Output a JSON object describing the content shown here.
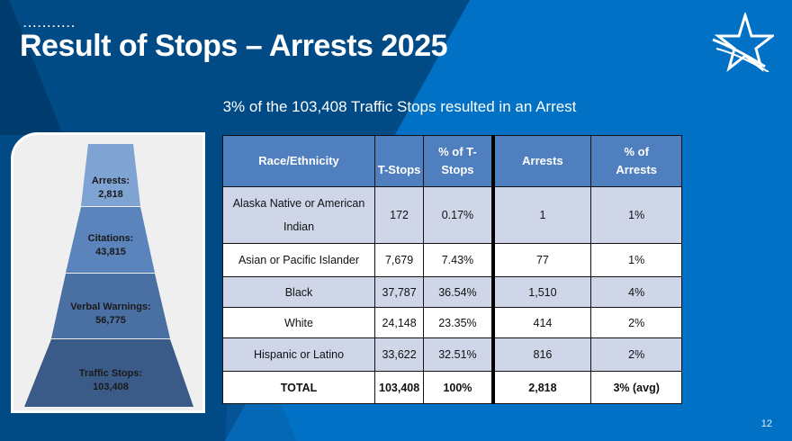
{
  "slide": {
    "title": "Result of Stops – Arrests 2025",
    "dots": "...........",
    "subtitle": "3% of the 103,408 Traffic Stops resulted in an Arrest",
    "page_number": "12"
  },
  "colors": {
    "navy": "#004a85",
    "blue": "#0071c5",
    "header": "#4f7fbf",
    "row_alt": "#cfd6e8"
  },
  "pyramid": [
    {
      "label": "Arrests:",
      "value": "2,818",
      "color": "#7fa3d2"
    },
    {
      "label": "Citations:",
      "value": "43,815",
      "color": "#5a84bb"
    },
    {
      "label": "Verbal Warnings:",
      "value": "56,775",
      "color": "#4a6fa3"
    },
    {
      "label": "Traffic Stops:",
      "value": "103,408",
      "color": "#3a5a88"
    }
  ],
  "table": {
    "headers": [
      "Race/Ethnicity",
      "T-Stops",
      "% of T-Stops",
      "Arrests",
      "% of Arrests"
    ],
    "rows": [
      [
        "Alaska Native or American Indian",
        "172",
        "0.17%",
        "1",
        "1%"
      ],
      [
        "Asian or Pacific Islander",
        "7,679",
        "7.43%",
        "77",
        "1%"
      ],
      [
        "Black",
        "37,787",
        "36.54%",
        "1,510",
        "4%"
      ],
      [
        "White",
        "24,148",
        "23.35%",
        "414",
        "2%"
      ],
      [
        "Hispanic or Latino",
        "33,622",
        "32.51%",
        "816",
        "2%"
      ]
    ],
    "total": [
      "TOTAL",
      "103,408",
      "100%",
      "2,818",
      "3% (avg)"
    ]
  }
}
